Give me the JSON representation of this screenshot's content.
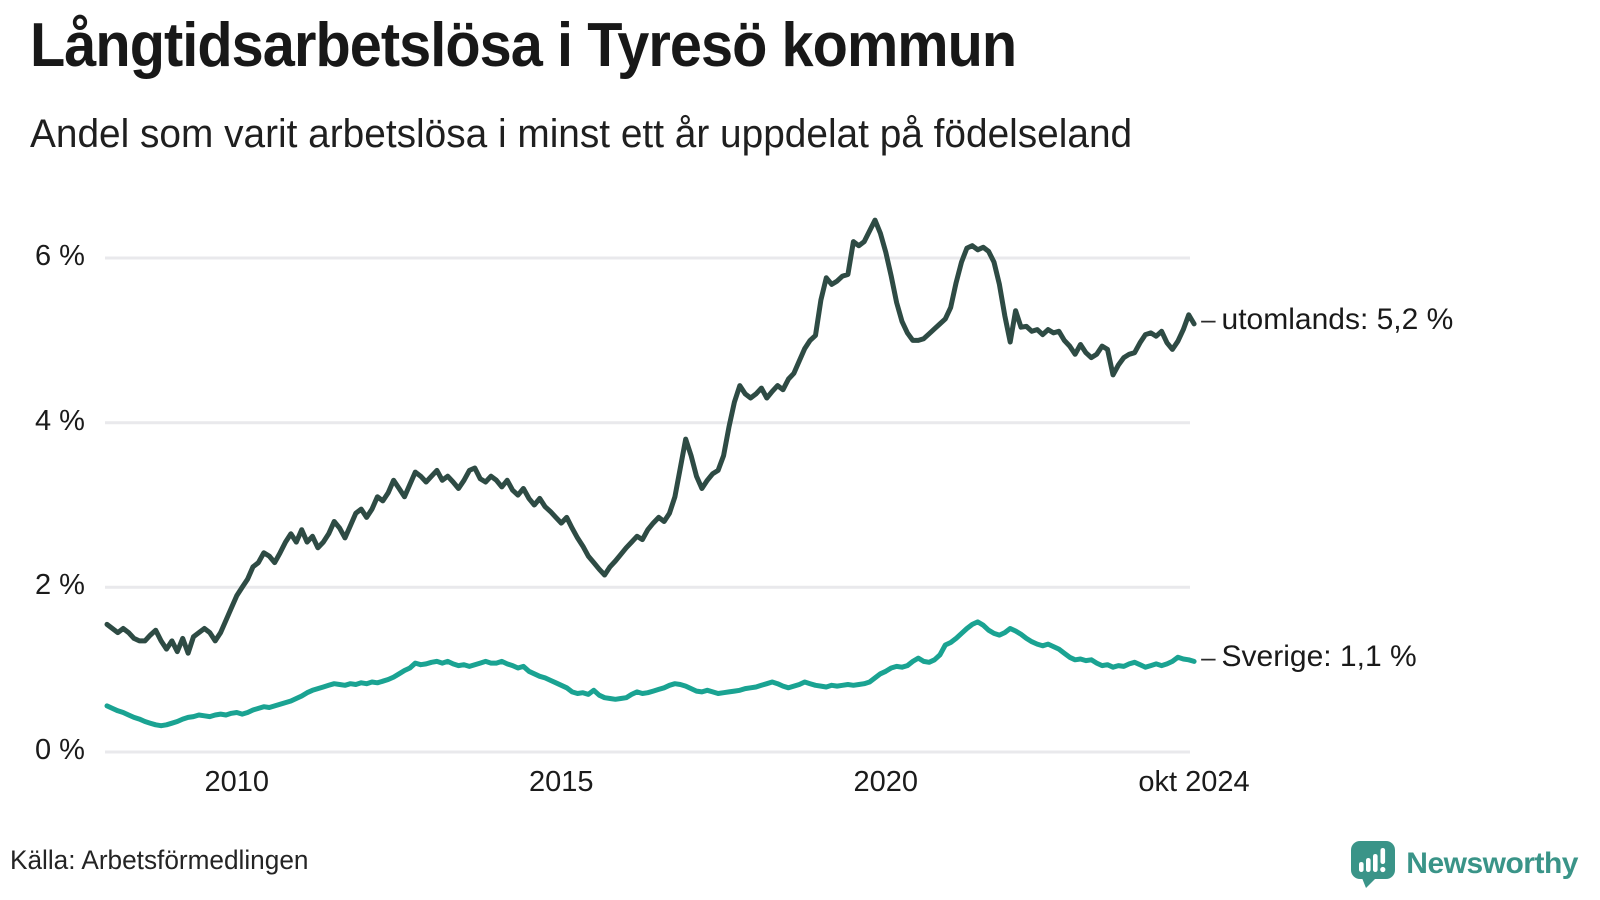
{
  "header": {
    "title": "Långtidsarbetslösa i Tyresö kommun",
    "subtitle": "Andel som varit arbetslösa i minst ett år uppdelat på födelseland"
  },
  "footer": {
    "source": "Källa: Arbetsförmedlingen",
    "logo_text": "Newsworthy",
    "logo_color": "#3a9488"
  },
  "chart_data": {
    "type": "line",
    "title": "Långtidsarbetslösa i Tyresö kommun",
    "subtitle": "Andel som varit arbetslösa i minst ett år uppdelat på födelseland",
    "x_start_year": 2008,
    "x_interval_months": 1,
    "x_end_label": "okt 2024",
    "ylim": [
      0,
      6.8
    ],
    "grid": "horizontal",
    "grid_color": "#e9e9ec",
    "label_connector": "–",
    "y_ticks": [
      {
        "value": 0,
        "label": "0 %"
      },
      {
        "value": 2,
        "label": "2 %"
      },
      {
        "value": 4,
        "label": "4 %"
      },
      {
        "value": 6,
        "label": "6 %"
      }
    ],
    "x_ticks": [
      {
        "year": 2010,
        "label": "2010"
      },
      {
        "year": 2015,
        "label": "2015"
      },
      {
        "year": 2020,
        "label": "2020"
      },
      {
        "year": 2024.75,
        "label": "okt 2024"
      }
    ],
    "series": [
      {
        "name": "utomlands",
        "end_label": "utomlands: 5,2 %",
        "end_value_label": "5,2 %",
        "color": "#2e4b44",
        "values": [
          1.55,
          1.5,
          1.45,
          1.5,
          1.45,
          1.38,
          1.35,
          1.35,
          1.42,
          1.48,
          1.35,
          1.25,
          1.35,
          1.22,
          1.38,
          1.2,
          1.4,
          1.45,
          1.5,
          1.45,
          1.35,
          1.45,
          1.6,
          1.75,
          1.9,
          2.0,
          2.1,
          2.25,
          2.3,
          2.42,
          2.38,
          2.3,
          2.42,
          2.55,
          2.65,
          2.55,
          2.7,
          2.55,
          2.62,
          2.48,
          2.55,
          2.65,
          2.8,
          2.72,
          2.6,
          2.75,
          2.9,
          2.95,
          2.85,
          2.95,
          3.1,
          3.05,
          3.15,
          3.3,
          3.2,
          3.1,
          3.25,
          3.4,
          3.35,
          3.28,
          3.35,
          3.42,
          3.3,
          3.35,
          3.28,
          3.2,
          3.3,
          3.42,
          3.45,
          3.32,
          3.28,
          3.35,
          3.3,
          3.22,
          3.3,
          3.18,
          3.12,
          3.2,
          3.08,
          3.0,
          3.08,
          2.98,
          2.92,
          2.85,
          2.78,
          2.85,
          2.72,
          2.6,
          2.5,
          2.38,
          2.3,
          2.22,
          2.15,
          2.25,
          2.32,
          2.4,
          2.48,
          2.55,
          2.62,
          2.58,
          2.7,
          2.78,
          2.85,
          2.8,
          2.9,
          3.1,
          3.45,
          3.8,
          3.6,
          3.35,
          3.2,
          3.3,
          3.38,
          3.42,
          3.6,
          3.95,
          4.25,
          4.45,
          4.35,
          4.3,
          4.35,
          4.42,
          4.3,
          4.38,
          4.45,
          4.4,
          4.53,
          4.6,
          4.75,
          4.9,
          5.0,
          5.06,
          5.49,
          5.76,
          5.68,
          5.72,
          5.78,
          5.8,
          6.2,
          6.15,
          6.2,
          6.33,
          6.46,
          6.3,
          6.07,
          5.78,
          5.46,
          5.23,
          5.09,
          5.0,
          5.0,
          5.02,
          5.08,
          5.14,
          5.2,
          5.26,
          5.4,
          5.7,
          5.95,
          6.12,
          6.15,
          6.1,
          6.13,
          6.08,
          5.95,
          5.68,
          5.3,
          4.98,
          5.36,
          5.16,
          5.17,
          5.11,
          5.13,
          5.07,
          5.13,
          5.09,
          5.11,
          5.0,
          4.93,
          4.83,
          4.95,
          4.85,
          4.79,
          4.83,
          4.93,
          4.89,
          4.58,
          4.7,
          4.79,
          4.83,
          4.85,
          4.97,
          5.07,
          5.09,
          5.05,
          5.11,
          4.97,
          4.89,
          4.99,
          5.13,
          5.31,
          5.2
        ]
      },
      {
        "name": "Sverige",
        "end_label": "Sverige: 1,1 %",
        "end_value_label": "1,1 %",
        "color": "#1aa392",
        "values": [
          0.56,
          0.53,
          0.5,
          0.48,
          0.45,
          0.42,
          0.4,
          0.37,
          0.35,
          0.33,
          0.32,
          0.33,
          0.35,
          0.37,
          0.4,
          0.42,
          0.43,
          0.45,
          0.44,
          0.43,
          0.45,
          0.46,
          0.45,
          0.47,
          0.48,
          0.46,
          0.48,
          0.51,
          0.53,
          0.55,
          0.54,
          0.56,
          0.58,
          0.6,
          0.62,
          0.65,
          0.68,
          0.72,
          0.75,
          0.77,
          0.79,
          0.81,
          0.83,
          0.82,
          0.81,
          0.83,
          0.82,
          0.84,
          0.83,
          0.85,
          0.84,
          0.86,
          0.88,
          0.91,
          0.95,
          0.99,
          1.02,
          1.08,
          1.06,
          1.07,
          1.09,
          1.1,
          1.08,
          1.1,
          1.07,
          1.05,
          1.06,
          1.04,
          1.06,
          1.08,
          1.1,
          1.08,
          1.08,
          1.1,
          1.07,
          1.05,
          1.02,
          1.04,
          0.98,
          0.95,
          0.92,
          0.9,
          0.87,
          0.84,
          0.81,
          0.78,
          0.73,
          0.71,
          0.72,
          0.7,
          0.75,
          0.69,
          0.66,
          0.65,
          0.64,
          0.65,
          0.66,
          0.7,
          0.73,
          0.71,
          0.72,
          0.74,
          0.76,
          0.78,
          0.81,
          0.83,
          0.82,
          0.8,
          0.77,
          0.74,
          0.73,
          0.75,
          0.73,
          0.71,
          0.72,
          0.73,
          0.74,
          0.75,
          0.77,
          0.78,
          0.79,
          0.81,
          0.83,
          0.85,
          0.83,
          0.8,
          0.78,
          0.8,
          0.82,
          0.85,
          0.83,
          0.81,
          0.8,
          0.79,
          0.81,
          0.8,
          0.81,
          0.82,
          0.81,
          0.82,
          0.83,
          0.85,
          0.9,
          0.95,
          0.98,
          1.02,
          1.04,
          1.03,
          1.05,
          1.1,
          1.14,
          1.1,
          1.09,
          1.12,
          1.18,
          1.3,
          1.33,
          1.38,
          1.44,
          1.5,
          1.55,
          1.58,
          1.54,
          1.48,
          1.44,
          1.42,
          1.45,
          1.5,
          1.47,
          1.43,
          1.38,
          1.34,
          1.31,
          1.29,
          1.31,
          1.28,
          1.25,
          1.2,
          1.15,
          1.12,
          1.13,
          1.11,
          1.12,
          1.08,
          1.05,
          1.06,
          1.03,
          1.05,
          1.04,
          1.07,
          1.09,
          1.06,
          1.03,
          1.05,
          1.07,
          1.05,
          1.07,
          1.1,
          1.15,
          1.13,
          1.12,
          1.1
        ]
      }
    ]
  }
}
